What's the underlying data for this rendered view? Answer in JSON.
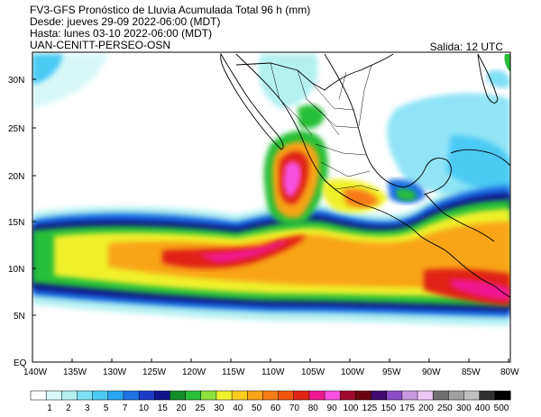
{
  "header": {
    "line1": "FV3-GFS Pronóstico de Lluvia Acumulada Total 96 h (mm)",
    "line2": "Desde: jueves 29-09 2022-06:00 (MDT)",
    "line3": "Hasta: lunes 03-10 2022-06:00 (MDT)",
    "line4": "UAN-CENITT-PERSEO-OSN",
    "run": "Salida: 12 UTC"
  },
  "map": {
    "lat_labels": [
      "30N",
      "25N",
      "20N",
      "15N",
      "10N",
      "5N",
      "EQ"
    ],
    "lon_labels": [
      "140W",
      "135W",
      "130W",
      "125W",
      "120W",
      "115W",
      "110W",
      "105W",
      "100W",
      "95W",
      "90W",
      "85W",
      "80W"
    ]
  },
  "colorbar": {
    "levels": [
      "1",
      "2",
      "3",
      "5",
      "7",
      "10",
      "15",
      "20",
      "25",
      "30",
      "40",
      "50",
      "60",
      "70",
      "80",
      "90",
      "100",
      "125",
      "150",
      "175",
      "200",
      "250",
      "300",
      "400",
      "500"
    ],
    "colors": [
      "#ffffff",
      "#d8f8f8",
      "#b4f0f0",
      "#7ee0f4",
      "#4ccaf4",
      "#2aa6f0",
      "#1e72e4",
      "#1a3cc8",
      "#10148c",
      "#148c28",
      "#28c038",
      "#8ce03c",
      "#f0f02c",
      "#f8cc20",
      "#f8a418",
      "#f87c14",
      "#f0540c",
      "#e02414",
      "#f01890",
      "#f850e0",
      "#a0082c",
      "#6c0410",
      "#400a70",
      "#8c4cc8",
      "#c898e0",
      "#f0c8f8",
      "#707070",
      "#a0a0a0",
      "#c0c0c0",
      "#303030",
      "#000000"
    ]
  }
}
